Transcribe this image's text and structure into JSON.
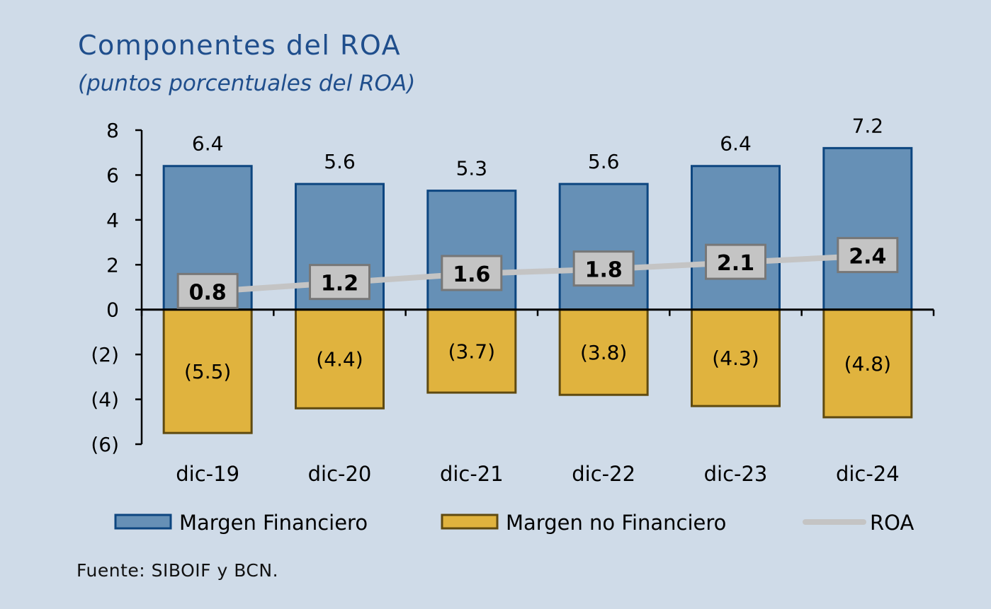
{
  "title": "Componentes del ROA",
  "subtitle": "(puntos porcentuales del ROA)",
  "source": "Fuente: SIBOIF y BCN.",
  "colors": {
    "background": "#cfdbe8",
    "margen_financiero_fill": "#6690b6",
    "margen_financiero_stroke": "#0d4680",
    "margen_no_financiero_fill": "#e0b33e",
    "margen_no_financiero_stroke": "#5f4a10",
    "roa_line": "#c4c4c4",
    "roa_label_fill": "#c4c4c4",
    "roa_label_stroke": "#777777",
    "title": "#1f4e8c"
  },
  "chart_data": {
    "type": "bar",
    "stacked": true,
    "categories": [
      "dic-19",
      "dic-20",
      "dic-21",
      "dic-22",
      "dic-23",
      "dic-24"
    ],
    "series": [
      {
        "name": "Margen Financiero",
        "type": "bar",
        "values": [
          6.4,
          5.6,
          5.3,
          5.6,
          6.4,
          7.2
        ],
        "labels": [
          "6.4",
          "5.6",
          "5.3",
          "5.6",
          "6.4",
          "7.2"
        ]
      },
      {
        "name": "Margen no Financiero",
        "type": "bar",
        "values": [
          -5.5,
          -4.4,
          -3.7,
          -3.8,
          -4.3,
          -4.8
        ],
        "labels": [
          "(5.5)",
          "(4.4)",
          "(3.7)",
          "(3.8)",
          "(4.3)",
          "(4.8)"
        ]
      },
      {
        "name": "ROA",
        "type": "line",
        "values": [
          0.8,
          1.2,
          1.6,
          1.8,
          2.1,
          2.4
        ],
        "labels": [
          "0.8",
          "1.2",
          "1.6",
          "1.8",
          "2.1",
          "2.4"
        ]
      }
    ],
    "ylim": [
      -6,
      8
    ],
    "yticks": [
      8,
      6,
      4,
      2,
      0,
      -2,
      -4,
      -6
    ],
    "ytick_labels": [
      "8",
      "6",
      "4",
      "2",
      "0",
      "(2)",
      "(4)",
      "(6)"
    ],
    "xlabel": "",
    "ylabel": "",
    "grid": false,
    "legend_position": "bottom"
  }
}
